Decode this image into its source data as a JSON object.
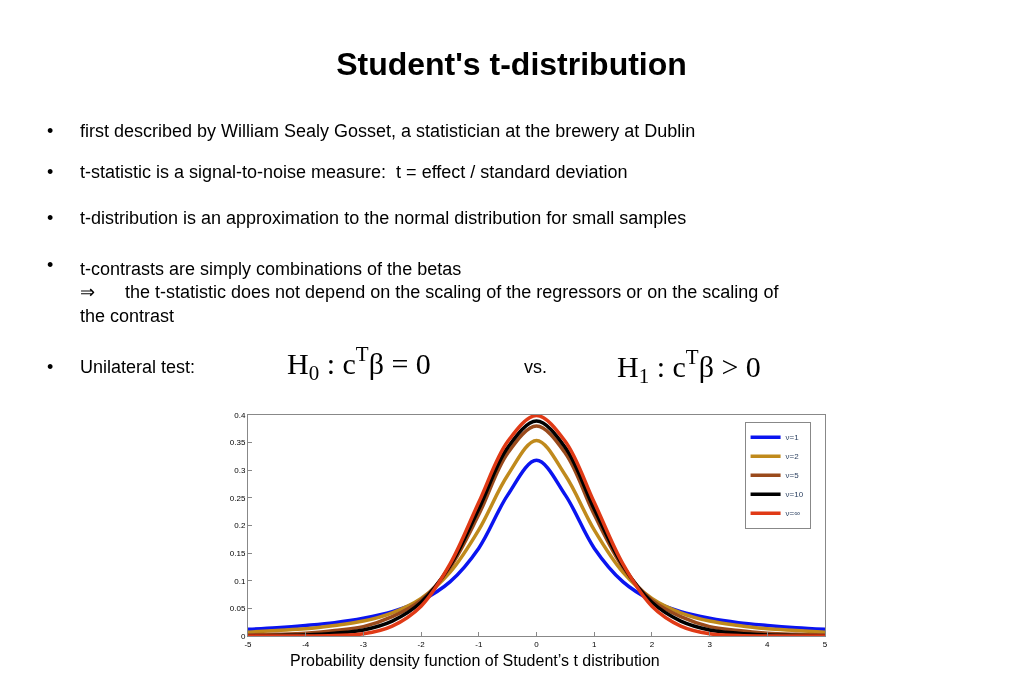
{
  "chart_data": {
    "type": "line",
    "title": "Student's t-distribution",
    "annotations": [
      "•",
      "first described by William Sealy Gosset, a statistician at the brewery at Dublin",
      "•",
      "t-statistic is a signal-to-noise measure:  t = effect / standard deviation",
      "•",
      "t-distribution is an approximation to the normal distribution for small samples",
      "•",
      "t-contrasts are simply combinations of the betas\n⇒      the t-statistic does not depend on the scaling of the regressors or on the scaling of\nthe contrast",
      "•",
      "Unilateral test:",
      "H$_{0}$ : c$^{T}$β = 0",
      "vs.",
      "H$_{1}$ : c$^{T}$β > 0",
      "Probability density function of Student’s t distribution"
    ],
    "x": [
      -5,
      -4.5,
      -4,
      -3.5,
      -3,
      -2.5,
      -2,
      -1.5,
      -1,
      -0.5,
      0,
      0.5,
      1,
      1.5,
      2,
      2.5,
      3,
      3.5,
      4,
      4.5,
      5
    ],
    "series": [
      {
        "name": "ν=1",
        "color": "#0a14f0",
        "values": [
          0.012,
          0.015,
          0.019,
          0.024,
          0.032,
          0.044,
          0.064,
          0.098,
          0.159,
          0.255,
          0.318,
          0.255,
          0.159,
          0.098,
          0.064,
          0.044,
          0.032,
          0.024,
          0.019,
          0.015,
          0.012
        ]
      },
      {
        "name": "ν=2",
        "color": "#c08a1c",
        "values": [
          0.007,
          0.01,
          0.013,
          0.019,
          0.027,
          0.042,
          0.068,
          0.115,
          0.192,
          0.291,
          0.354,
          0.291,
          0.192,
          0.115,
          0.068,
          0.042,
          0.027,
          0.019,
          0.013,
          0.01,
          0.007
        ]
      },
      {
        "name": "ν=5",
        "color": "#9a4a1c",
        "values": [
          0.002,
          0.003,
          0.005,
          0.01,
          0.017,
          0.035,
          0.065,
          0.124,
          0.22,
          0.331,
          0.38,
          0.331,
          0.22,
          0.124,
          0.065,
          0.035,
          0.017,
          0.01,
          0.005,
          0.003,
          0.002
        ]
      },
      {
        "name": "ν=10",
        "color": "#000000",
        "values": [
          0.0,
          0.001,
          0.002,
          0.005,
          0.011,
          0.027,
          0.061,
          0.127,
          0.23,
          0.341,
          0.389,
          0.341,
          0.23,
          0.127,
          0.061,
          0.027,
          0.011,
          0.005,
          0.002,
          0.001,
          0.0
        ]
      },
      {
        "name": "ν=∞",
        "color": "#e03a16",
        "values": [
          0.0,
          0.0,
          0.0,
          0.001,
          0.004,
          0.018,
          0.054,
          0.13,
          0.242,
          0.352,
          0.399,
          0.352,
          0.242,
          0.13,
          0.054,
          0.018,
          0.004,
          0.001,
          0.0,
          0.0,
          0.0
        ]
      }
    ],
    "xlim": [
      -5,
      5
    ],
    "xticks": [
      -5,
      -4,
      -3,
      -2,
      -1,
      0,
      1,
      2,
      3,
      4,
      5
    ],
    "ylim": [
      0,
      0.4
    ],
    "yticks": [
      0,
      0.05,
      0.1,
      0.15,
      0.2,
      0.25,
      0.3,
      0.35,
      0.4
    ],
    "legend": "top right",
    "line_style": "solid",
    "marker": "none"
  }
}
